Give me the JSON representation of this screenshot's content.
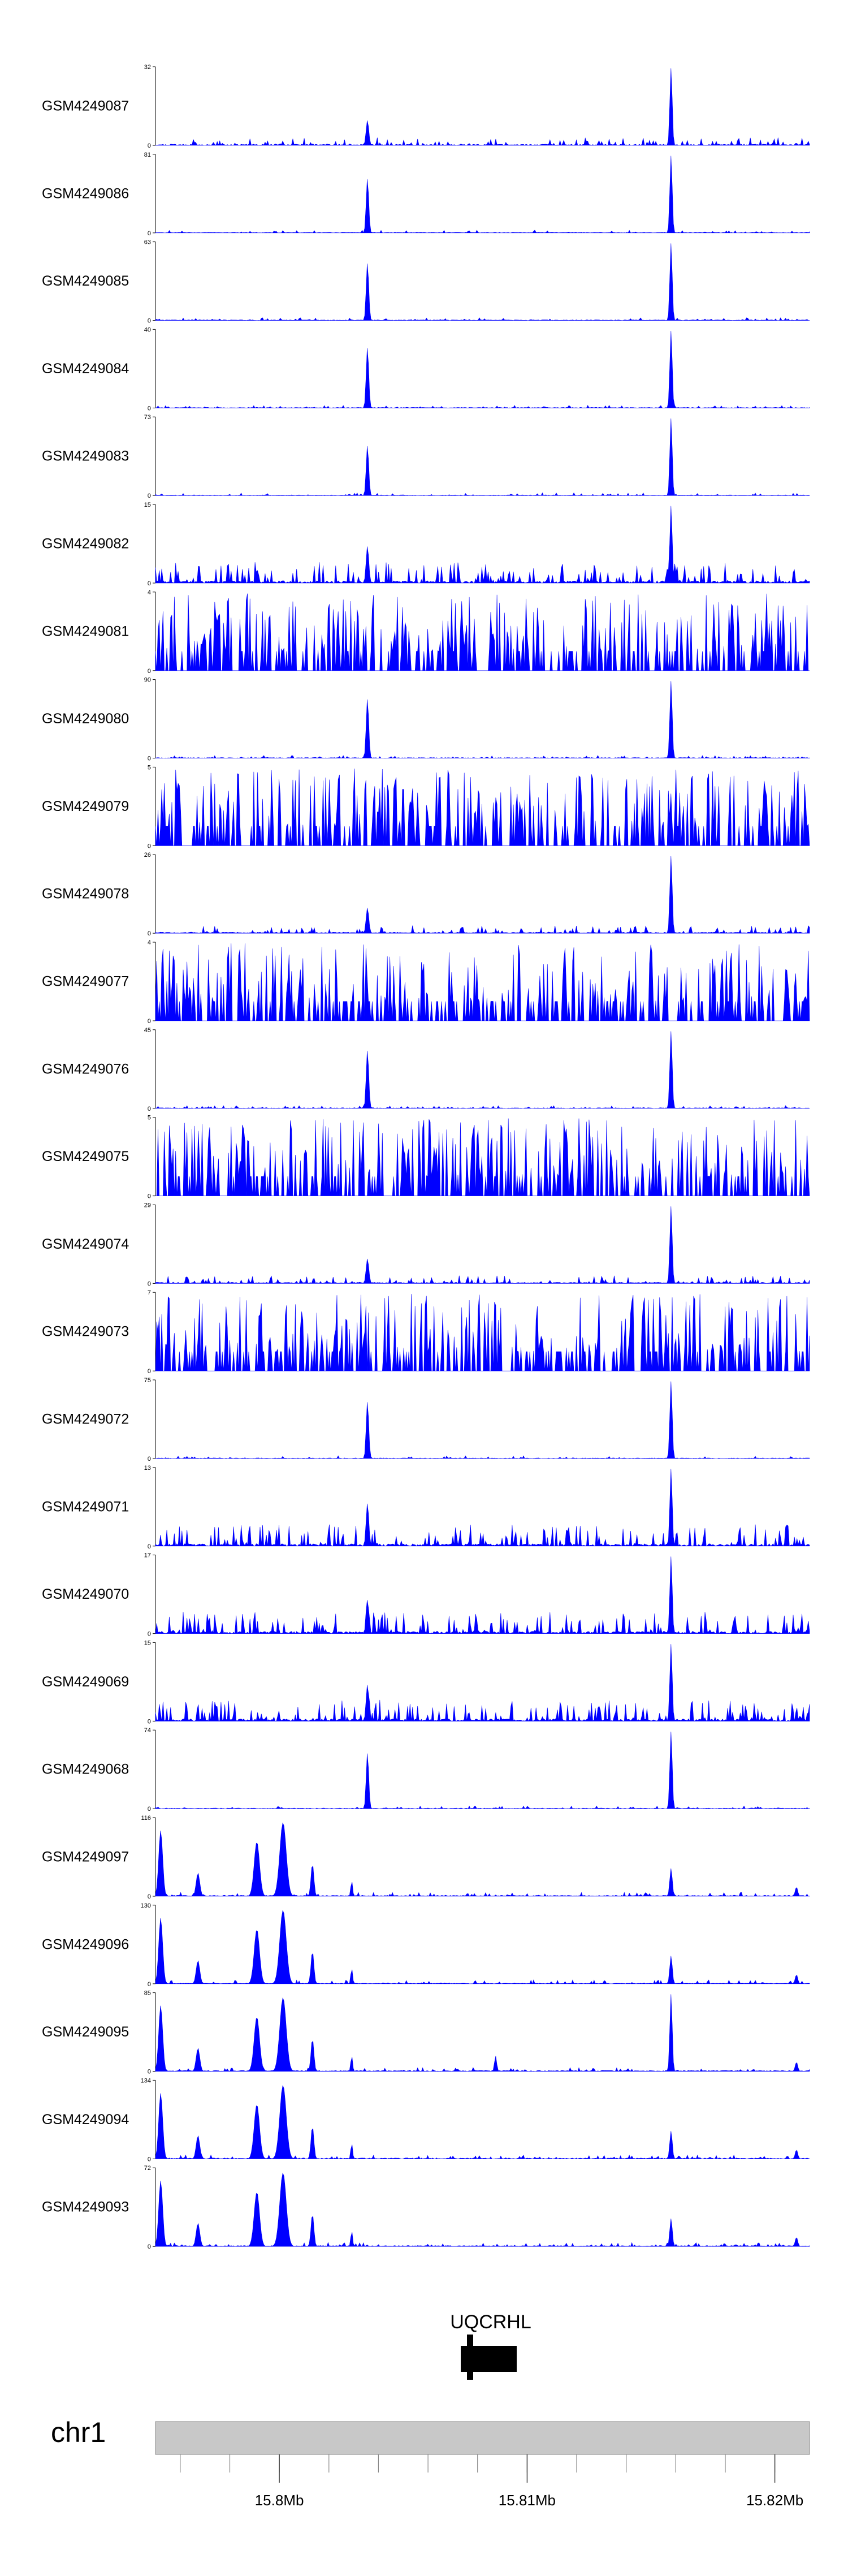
{
  "chart_data": {
    "type": "area",
    "x_axis": {
      "chrom": "chr1",
      "tick_labels": [
        "15.8Mb",
        "15.81Mb",
        "15.82Mb"
      ],
      "tick_values_mb": [
        15.8,
        15.81,
        15.82
      ],
      "xlim_mb": [
        15.795,
        15.8214
      ],
      "minor_ticks": 13
    },
    "fill_color": "#0000ff",
    "tracks": [
      {
        "name": "GSM4249087",
        "ymax": "32",
        "mode": "spiky"
      },
      {
        "name": "GSM4249086",
        "ymax": "81",
        "mode": "peak"
      },
      {
        "name": "GSM4249085",
        "ymax": "63",
        "mode": "peak"
      },
      {
        "name": "GSM4249084",
        "ymax": "40",
        "mode": "peak"
      },
      {
        "name": "GSM4249083",
        "ymax": "73",
        "mode": "peak"
      },
      {
        "name": "GSM4249082",
        "ymax": "15",
        "mode": "noisy"
      },
      {
        "name": "GSM4249081",
        "ymax": "4",
        "mode": "sparse"
      },
      {
        "name": "GSM4249080",
        "ymax": "90",
        "mode": "peak"
      },
      {
        "name": "GSM4249079",
        "ymax": "5",
        "mode": "sparse"
      },
      {
        "name": "GSM4249078",
        "ymax": "26",
        "mode": "spiky"
      },
      {
        "name": "GSM4249077",
        "ymax": "4",
        "mode": "sparse"
      },
      {
        "name": "GSM4249076",
        "ymax": "45",
        "mode": "peak"
      },
      {
        "name": "GSM4249075",
        "ymax": "5",
        "mode": "sparse"
      },
      {
        "name": "GSM4249074",
        "ymax": "29",
        "mode": "spiky"
      },
      {
        "name": "GSM4249073",
        "ymax": "7",
        "mode": "sparse"
      },
      {
        "name": "GSM4249072",
        "ymax": "75",
        "mode": "peak"
      },
      {
        "name": "GSM4249071",
        "ymax": "13",
        "mode": "noisy"
      },
      {
        "name": "GSM4249070",
        "ymax": "17",
        "mode": "noisy"
      },
      {
        "name": "GSM4249069",
        "ymax": "15",
        "mode": "noisy"
      },
      {
        "name": "GSM4249068",
        "ymax": "74",
        "mode": "peak"
      },
      {
        "name": "GSM4249097",
        "ymax": "116",
        "mode": "cluster"
      },
      {
        "name": "GSM4249096",
        "ymax": "130",
        "mode": "cluster"
      },
      {
        "name": "GSM4249095",
        "ymax": "85",
        "mode": "cluster2"
      },
      {
        "name": "GSM4249094",
        "ymax": "134",
        "mode": "cluster"
      },
      {
        "name": "GSM4249093",
        "ymax": "72",
        "mode": "cluster"
      }
    ],
    "gene": {
      "name": "UQCRHL"
    }
  }
}
